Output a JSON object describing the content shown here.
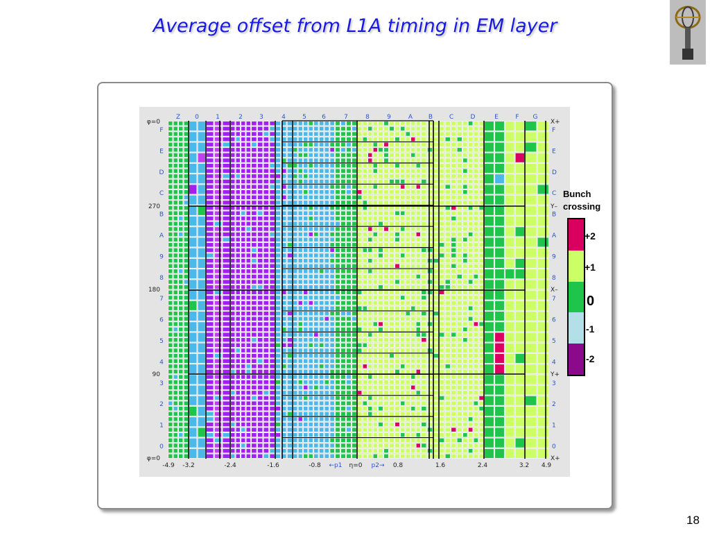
{
  "title": "Average offset from L1A timing in EM layer",
  "page_number": "18",
  "legend": {
    "title_line1": "Bunch",
    "title_line2": "crossing",
    "labels": [
      "+2",
      "+1",
      "0",
      "-1",
      "-2"
    ],
    "colors": [
      "#d9005f",
      "#ccff66",
      "#1fc44a",
      "#b2dfe8",
      "#8b0a8b"
    ]
  },
  "chart_data": {
    "type": "heatmap",
    "title": "Average offset from L1A timing in EM layer",
    "top_labels": [
      "Z",
      "0",
      "1",
      "2",
      "3",
      "4",
      "5",
      "6",
      "7",
      "8",
      "9",
      "A",
      "B",
      "C",
      "D",
      "E",
      "F",
      "G"
    ],
    "phi_labels": [
      "F",
      "E",
      "D",
      "C",
      "B",
      "A",
      "9",
      "8",
      "7",
      "6",
      "5",
      "4",
      "3",
      "2",
      "1",
      "0"
    ],
    "phi_ticks": [
      "φ=0",
      "270",
      "180",
      "90",
      "φ=0"
    ],
    "right_ticks": [
      "X+",
      "Y–",
      "X–",
      "Y+",
      "X+"
    ],
    "eta_ticks": [
      "-4.9",
      "-3.2",
      "-2.4",
      "-1.6",
      "-0.8",
      "η=0",
      "0.8",
      "1.6",
      "2.4",
      "3.2",
      "4.9"
    ],
    "eta_arrows": [
      "←p1",
      "p2→"
    ],
    "value_scale": [
      -2,
      -1,
      0,
      1,
      2
    ],
    "columns_dominant_value": [
      0,
      -1,
      -2,
      -2,
      -2,
      -1,
      -1,
      -1,
      0,
      1,
      1,
      1,
      1,
      1,
      1,
      0,
      1,
      1
    ],
    "colors": {
      "p2": "#d9005f",
      "p1": "#ccff66",
      "z0": "#1fc44a",
      "m1": "#4cb8e8",
      "m2": "#a020f0",
      "m2b": "#c040f0"
    }
  }
}
